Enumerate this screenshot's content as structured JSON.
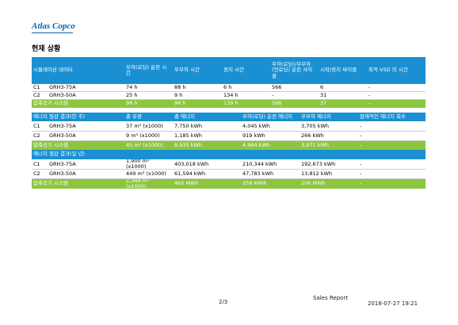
{
  "logo": "Atlas Copco",
  "title": "현재 상황",
  "table1": {
    "header": [
      "시뮬레이션 데이터",
      "부하(로딩) 운전 시간",
      "무부하 시간",
      "정지 시간",
      "부하(로딩)/무부하 (언로딩) 운전 사이클",
      "시작/정지 싸이클",
      "최적 VSD 의 시간"
    ],
    "rows": [
      [
        "C1",
        "GRH3-75A",
        "74 h",
        "88 h",
        "6 h",
        "566",
        "6",
        "-"
      ],
      [
        "C2",
        "GRH3-50A",
        "25 h",
        "9 h",
        "134 h",
        "-",
        "31",
        "-"
      ]
    ],
    "total": [
      "압축공기 시스템",
      "98 h",
      "98 h",
      "139 h",
      "566",
      "37",
      "-"
    ]
  },
  "table2": {
    "header": [
      "에너지 절감 결과(한 주)",
      "총 유량",
      "총 에너지",
      "부하(로딩) 운전 에너지",
      "무부하 에너지",
      "잠재적인 에너지 회수"
    ],
    "rows": [
      [
        "C1",
        "GRH3-75A",
        "37 m³ (x1000)",
        "7,750 kWh",
        "4,045 kWh",
        "3,705 kWh",
        "-"
      ],
      [
        "C2",
        "GRH3-50A",
        "9 m³ (x1000)",
        "1,185 kWh",
        "919 kWh",
        "266 kWh",
        "-"
      ]
    ],
    "total": [
      "압축공기 시스템",
      "45 m³ (x1000)",
      "8,935 kWh",
      "4,964 kWh",
      "3,971 kWh",
      "-"
    ]
  },
  "table3": {
    "header": [
      "에너지 절감 결과(일 년)"
    ],
    "rows": [
      [
        "C1",
        "GRH3-75A",
        "1,900 m³ (x1000)",
        "403,018 kWh",
        "210,344 kWh",
        "192,673 kWh",
        "-"
      ],
      [
        "C2",
        "GRH3-50A",
        "449 m³ (x1000)",
        "61,594 kWh",
        "47,783 kWh",
        "13,812 kWh",
        "-"
      ]
    ],
    "total": [
      "압축공기 시스템",
      "2,349 m³ (x1000)",
      "465 MWh",
      "258 MWh",
      "206 MWh",
      "-"
    ]
  },
  "footer": {
    "report": "Sales Report",
    "page": "2/3",
    "date": "2018-07-27 19:21"
  }
}
